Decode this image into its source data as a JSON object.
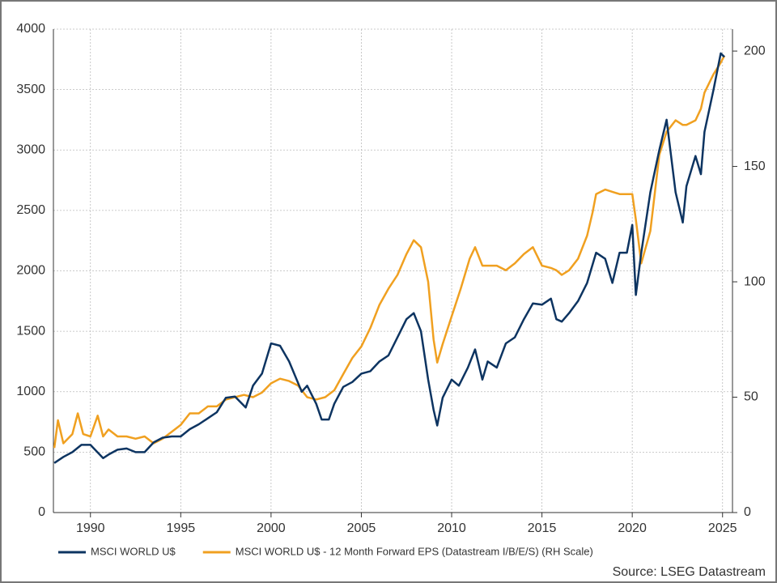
{
  "chart_data": {
    "type": "line",
    "source": "Source: LSEG Datastream",
    "xlim": [
      1987.95,
      2025.55
    ],
    "xticks": [
      1990,
      1995,
      2000,
      2005,
      2010,
      2015,
      2020,
      2025
    ],
    "ylim": [
      0,
      4000
    ],
    "yticks": [
      0,
      500,
      1000,
      1500,
      2000,
      2500,
      3000,
      3500,
      4000
    ],
    "y2lim": [
      0,
      209.5
    ],
    "y2ticks": [
      0,
      50,
      100,
      150,
      200
    ],
    "grid": true,
    "legend": "bottom",
    "series": [
      {
        "name": "MSCI WORLD U$",
        "color": "#0d3461",
        "x": [
          1988.0,
          1988.5,
          1989.0,
          1989.5,
          1990.0,
          1990.7,
          1991.0,
          1991.5,
          1992.0,
          1992.5,
          1993.0,
          1993.5,
          1994.0,
          1994.5,
          1995.0,
          1995.5,
          1996.0,
          1996.5,
          1997.0,
          1997.5,
          1998.0,
          1998.6,
          1999.0,
          1999.5,
          2000.0,
          2000.5,
          2001.0,
          2001.7,
          2002.0,
          2002.5,
          2002.8,
          2003.2,
          2003.5,
          2004.0,
          2004.5,
          2005.0,
          2005.5,
          2006.0,
          2006.5,
          2007.0,
          2007.5,
          2007.9,
          2008.3,
          2008.7,
          2009.0,
          2009.2,
          2009.5,
          2010.0,
          2010.4,
          2010.9,
          2011.3,
          2011.7,
          2012.0,
          2012.5,
          2013.0,
          2013.5,
          2014.0,
          2014.5,
          2015.0,
          2015.5,
          2015.8,
          2016.1,
          2016.5,
          2017.0,
          2017.5,
          2018.0,
          2018.5,
          2018.9,
          2019.3,
          2019.7,
          2020.0,
          2020.2,
          2020.5,
          2021.0,
          2021.5,
          2021.9,
          2022.4,
          2022.8,
          2023.0,
          2023.5,
          2023.8,
          2024.0,
          2024.5,
          2024.9,
          2025.1
        ],
        "values": [
          410,
          460,
          500,
          560,
          560,
          450,
          480,
          520,
          530,
          500,
          500,
          580,
          620,
          630,
          630,
          690,
          730,
          780,
          830,
          950,
          960,
          870,
          1050,
          1150,
          1400,
          1380,
          1250,
          1000,
          1050,
          900,
          770,
          770,
          900,
          1040,
          1080,
          1150,
          1170,
          1250,
          1300,
          1450,
          1600,
          1650,
          1500,
          1100,
          850,
          720,
          950,
          1100,
          1050,
          1200,
          1350,
          1100,
          1250,
          1200,
          1400,
          1450,
          1600,
          1730,
          1720,
          1770,
          1600,
          1580,
          1650,
          1750,
          1900,
          2150,
          2100,
          1900,
          2150,
          2150,
          2380,
          1800,
          2150,
          2650,
          3000,
          3250,
          2650,
          2400,
          2700,
          2950,
          2800,
          3150,
          3500,
          3800,
          3770
        ]
      },
      {
        "name": "MSCI WORLD U$ - 12 Month Forward EPS (Datastream I/B/E/S) (RH Scale)",
        "color": "#f0a020",
        "axis": "y2",
        "x": [
          1988.0,
          1988.2,
          1988.5,
          1989.0,
          1989.3,
          1989.6,
          1990.0,
          1990.4,
          1990.7,
          1991.0,
          1991.5,
          1992.0,
          1992.5,
          1993.0,
          1993.5,
          1994.0,
          1994.5,
          1995.0,
          1995.5,
          1996.0,
          1996.5,
          1997.0,
          1997.5,
          1998.0,
          1998.5,
          1999.0,
          1999.5,
          2000.0,
          2000.5,
          2001.0,
          2001.5,
          2002.0,
          2002.5,
          2003.0,
          2003.5,
          2004.0,
          2004.5,
          2005.0,
          2005.5,
          2006.0,
          2006.5,
          2007.0,
          2007.5,
          2007.9,
          2008.3,
          2008.7,
          2009.0,
          2009.2,
          2009.5,
          2010.0,
          2010.5,
          2011.0,
          2011.3,
          2011.7,
          2012.0,
          2012.5,
          2013.0,
          2013.5,
          2014.0,
          2014.5,
          2015.0,
          2015.5,
          2015.8,
          2016.1,
          2016.5,
          2017.0,
          2017.5,
          2017.8,
          2018.0,
          2018.5,
          2018.9,
          2019.3,
          2019.7,
          2020.0,
          2020.2,
          2020.5,
          2021.0,
          2021.5,
          2021.9,
          2022.4,
          2022.8,
          2023.0,
          2023.5,
          2023.8,
          2024.0,
          2024.5,
          2024.9,
          2025.1
        ],
        "values": [
          28,
          40,
          30,
          34,
          43,
          34,
          33,
          42,
          33,
          36,
          33,
          33,
          32,
          33,
          30,
          32,
          35,
          38,
          43,
          43,
          46,
          46,
          49,
          50,
          51,
          50,
          52,
          56,
          58,
          57,
          55,
          50,
          49,
          50,
          53,
          60,
          67,
          72,
          80,
          90,
          97,
          103,
          112,
          118,
          115,
          100,
          75,
          65,
          73,
          85,
          97,
          110,
          115,
          107,
          107,
          107,
          105,
          108,
          112,
          115,
          107,
          106,
          105,
          103,
          105,
          110,
          120,
          130,
          138,
          140,
          139,
          138,
          138,
          138,
          127,
          108,
          122,
          155,
          165,
          170,
          168,
          168,
          170,
          175,
          182,
          190,
          195,
          198
        ]
      }
    ]
  }
}
